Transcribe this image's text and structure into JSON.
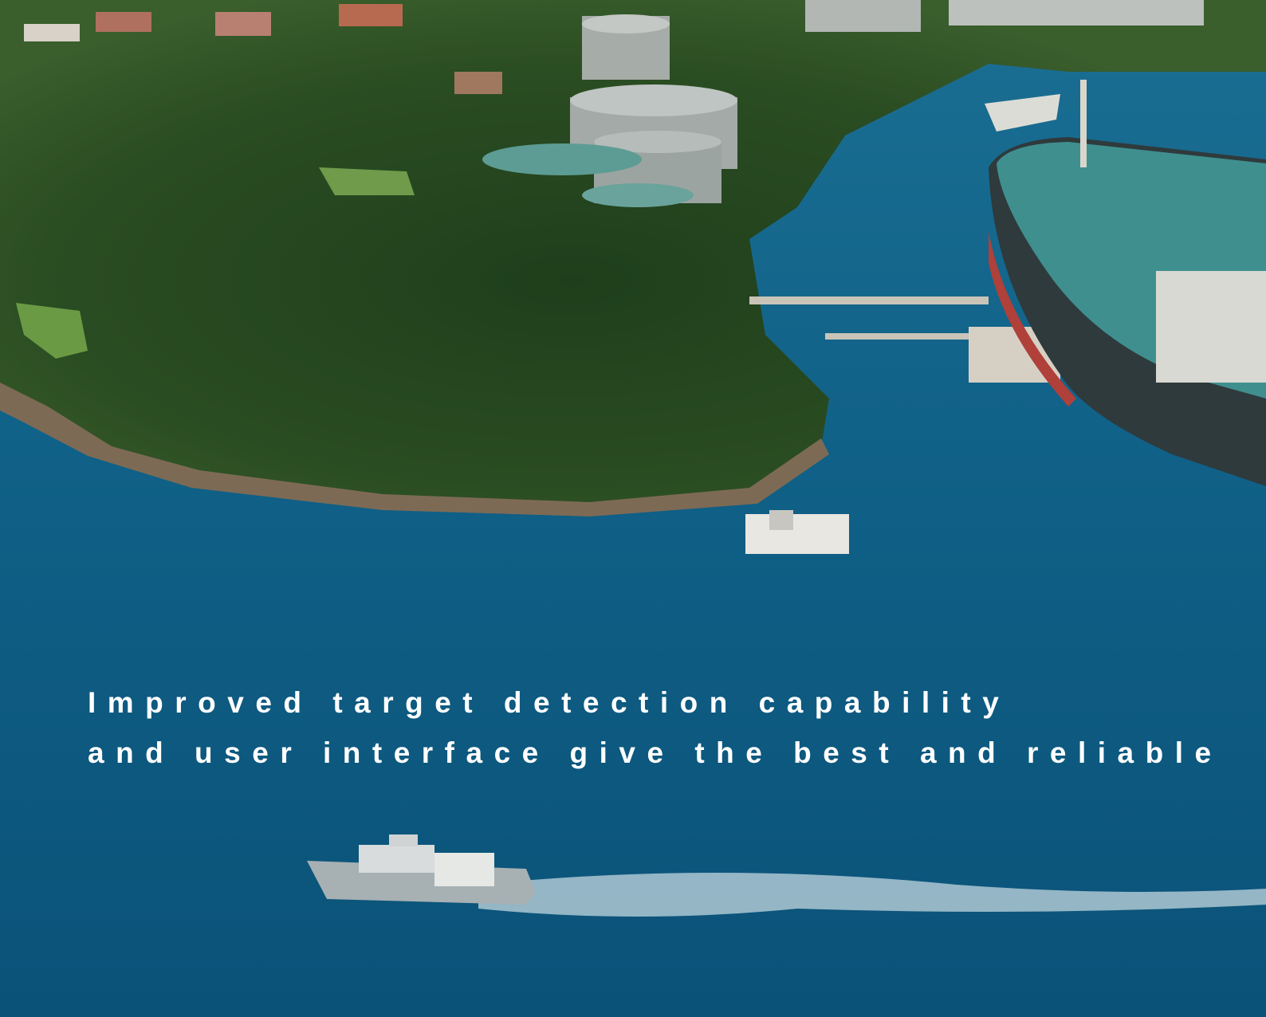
{
  "headline": {
    "lines": [
      "Improved target detection capability",
      "and user interface give the best and reliable"
    ]
  }
}
